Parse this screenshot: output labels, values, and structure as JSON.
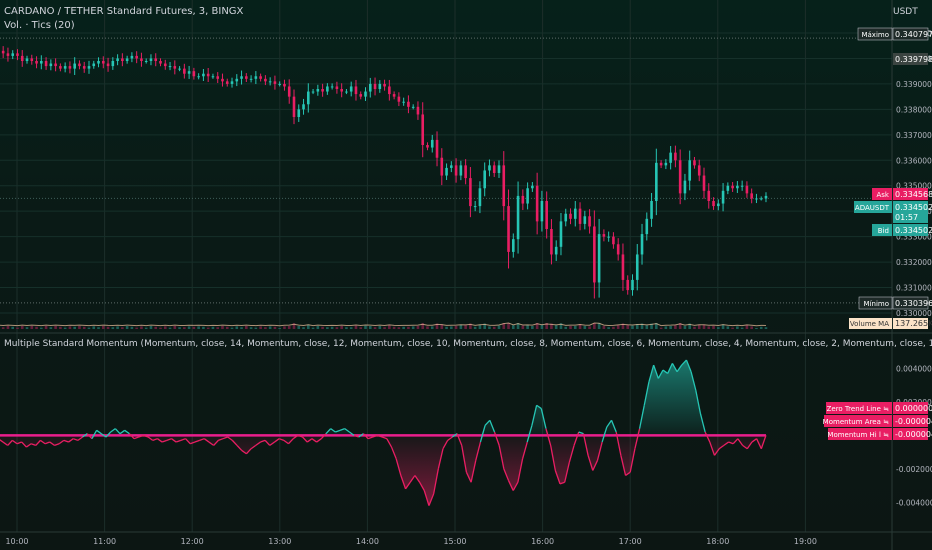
{
  "header": {
    "symbol_title": "CARDANO / TETHER Standard Futures, 3, BINGX",
    "volume_label": "Vol. · Tics (20)",
    "currency": "USDT"
  },
  "price_badges": {
    "max_label": "Máximo",
    "max_value": "0.340797",
    "prev_value": "0.339798",
    "ask_label": "Ask",
    "ask_value": "0.334568",
    "symbol_label": "ADAUSDT",
    "last_value": "0.334502",
    "countdown": "01:57",
    "bid_label": "Bid",
    "bid_value": "0.334502",
    "min_label": "Mínimo",
    "min_value": "0.330396",
    "volma_label": "Volume MA",
    "volma_value": "137.265K"
  },
  "indicator": {
    "title": "Multiple Standard Momentum (Momentum, close, 14, Momentum, close, 12, Momentum, close, 10, Momentum, close, 8, Momentum, close, 6, Momentum, close, 4, Momentum, close, 2, Momentum, close, 14, 10, 15)",
    "badges": [
      {
        "label": "Zero Trend Line ≒",
        "value": "0.000000"
      },
      {
        "label": "Momentum Area ≒",
        "value": "-0.000004"
      },
      {
        "label": "Momentum Hi l ≒",
        "value": "-0.000004"
      }
    ]
  },
  "colors": {
    "bull": "#26c6b5",
    "bear": "#e91e63",
    "zero_line": "#e91e8c",
    "badge_pink": "#e91e63",
    "badge_teal": "#26a69a"
  },
  "chart_data": [
    {
      "type": "candlestick",
      "series_name": "ADAUSDT",
      "x_ticks": [
        "10:00",
        "11:00",
        "12:00",
        "13:00",
        "14:00",
        "15:00",
        "16:00",
        "17:00",
        "18:00",
        "19:00"
      ],
      "y_ticks": [
        "0.341000",
        "0.340000",
        "0.339000",
        "0.338000",
        "0.337000",
        "0.336000",
        "0.335000",
        "0.334000",
        "0.333000",
        "0.332000",
        "0.331000",
        "0.330000"
      ],
      "ylim": [
        0.33,
        0.341
      ],
      "time_range": [
        "09:44",
        "18:33"
      ],
      "close": [
        0.3405,
        0.3403,
        0.3402,
        0.3401,
        0.3402,
        0.3401,
        0.3399,
        0.34,
        0.3399,
        0.3398,
        0.3399,
        0.3397,
        0.3398,
        0.3397,
        0.3396,
        0.3397,
        0.3396,
        0.3398,
        0.3397,
        0.3396,
        0.3397,
        0.3398,
        0.3399,
        0.3398,
        0.3397,
        0.3399,
        0.34,
        0.3399,
        0.34,
        0.3401,
        0.34,
        0.3399,
        0.3399,
        0.34,
        0.3399,
        0.3398,
        0.3397,
        0.3397,
        0.3396,
        0.3396,
        0.3394,
        0.3395,
        0.3393,
        0.3393,
        0.3394,
        0.3393,
        0.3393,
        0.3392,
        0.3391,
        0.339,
        0.3391,
        0.3392,
        0.3393,
        0.3392,
        0.3392,
        0.3393,
        0.3392,
        0.3391,
        0.3391,
        0.339,
        0.339,
        0.3389,
        0.3385,
        0.3377,
        0.338,
        0.3382,
        0.3387,
        0.3387,
        0.3388,
        0.3387,
        0.3389,
        0.3389,
        0.3388,
        0.3387,
        0.3387,
        0.3389,
        0.3386,
        0.3385,
        0.3387,
        0.339,
        0.3388,
        0.339,
        0.3389,
        0.3386,
        0.3385,
        0.3383,
        0.3383,
        0.3381,
        0.3381,
        0.3378,
        0.3366,
        0.3365,
        0.3368,
        0.3361,
        0.3354,
        0.3357,
        0.3358,
        0.3354,
        0.3358,
        0.3353,
        0.3342,
        0.3342,
        0.3349,
        0.3356,
        0.3358,
        0.3355,
        0.3358,
        0.3342,
        0.3324,
        0.3329,
        0.3346,
        0.3343,
        0.3349,
        0.335,
        0.3336,
        0.3344,
        0.3333,
        0.3323,
        0.3326,
        0.3336,
        0.3339,
        0.3337,
        0.3341,
        0.3335,
        0.3338,
        0.3334,
        0.3312,
        0.3331,
        0.333,
        0.333,
        0.3327,
        0.3323,
        0.3313,
        0.3309,
        0.3313,
        0.3323,
        0.3331,
        0.3337,
        0.3344,
        0.3359,
        0.3358,
        0.3359,
        0.3363,
        0.336,
        0.3347,
        0.3352,
        0.336,
        0.3358,
        0.3354,
        0.3348,
        0.3344,
        0.3342,
        0.3343,
        0.3348,
        0.335,
        0.3349,
        0.335,
        0.335,
        0.3347,
        0.3345,
        0.3345,
        0.3345,
        0.3346
      ]
    },
    {
      "type": "line",
      "series_name": "Multiple Standard Momentum",
      "y_ticks": [
        "0.004000",
        "0.002000",
        "-0.002000",
        "-0.004000"
      ],
      "ylim": [
        -0.0044,
        0.0048
      ],
      "x_range": [
        "09:44",
        "18:33"
      ],
      "values": [
        0.0,
        -0.0002,
        -0.0004,
        -0.0006,
        -0.0003,
        -0.0005,
        -0.0004,
        -0.0007,
        -0.0005,
        -0.0006,
        -0.0003,
        -0.0005,
        -0.0004,
        -0.0006,
        -0.0005,
        -0.0003,
        -0.0004,
        -0.0002,
        -0.0003,
        -0.0001,
        0.0001,
        -0.0002,
        0.0003,
        0.0001,
        -0.0001,
        0.0002,
        0.0004,
        0.0001,
        0.0003,
        0.0001,
        -0.0002,
        -0.0001,
        0.0,
        -0.0001,
        -0.0003,
        -0.0002,
        -0.0004,
        -0.0003,
        -0.0002,
        -0.0004,
        -0.0003,
        -0.0002,
        -0.0005,
        -0.0004,
        -0.0003,
        -0.0002,
        -0.0004,
        -0.0006,
        -0.0003,
        -0.0002,
        -0.0001,
        -0.0003,
        -0.0006,
        -0.0009,
        -0.0011,
        -0.0008,
        -0.0006,
        -0.0004,
        -0.0003,
        -0.0006,
        -0.0004,
        -0.0002,
        -0.0003,
        -0.0005,
        -0.0002,
        0.0,
        -0.0001,
        -0.0004,
        -0.0002,
        -0.0004,
        -0.0002,
        0.0001,
        0.0004,
        0.0002,
        0.0003,
        0.0004,
        0.0002,
        0.0,
        -0.0001,
        0.0001,
        -0.0002,
        -0.0001,
        0.0,
        -0.0001,
        -0.0002,
        -0.0007,
        -0.0014,
        -0.0024,
        -0.0032,
        -0.0028,
        -0.0024,
        -0.0028,
        -0.0033,
        -0.0042,
        -0.0035,
        -0.002,
        -0.0008,
        -0.0003,
        -0.0001,
        0.0001,
        -0.0006,
        -0.0022,
        -0.0028,
        -0.0015,
        -0.0004,
        0.0006,
        0.0009,
        0.0002,
        -0.0006,
        -0.002,
        -0.0027,
        -0.0033,
        -0.0028,
        -0.0014,
        -0.0004,
        0.0006,
        0.0018,
        0.0016,
        0.0004,
        -0.0006,
        -0.0021,
        -0.0029,
        -0.0028,
        -0.0016,
        -0.0006,
        0.0002,
        0.0001,
        -0.0012,
        -0.0021,
        -0.0015,
        -0.0004,
        0.0005,
        0.0009,
        0.0002,
        -0.0012,
        -0.0024,
        -0.0022,
        -0.0008,
        0.0004,
        0.0018,
        0.0032,
        0.0042,
        0.0034,
        0.0039,
        0.0037,
        0.0043,
        0.0038,
        0.0042,
        0.0045,
        0.0038,
        0.0027,
        0.0013,
        0.0002,
        -0.0004,
        -0.0012,
        -0.0008,
        -0.0006,
        -0.0004,
        -0.0005,
        -0.0002,
        -0.0006,
        -0.0008,
        -0.0004,
        -0.0002,
        -0.0008,
        0.0
      ]
    }
  ]
}
